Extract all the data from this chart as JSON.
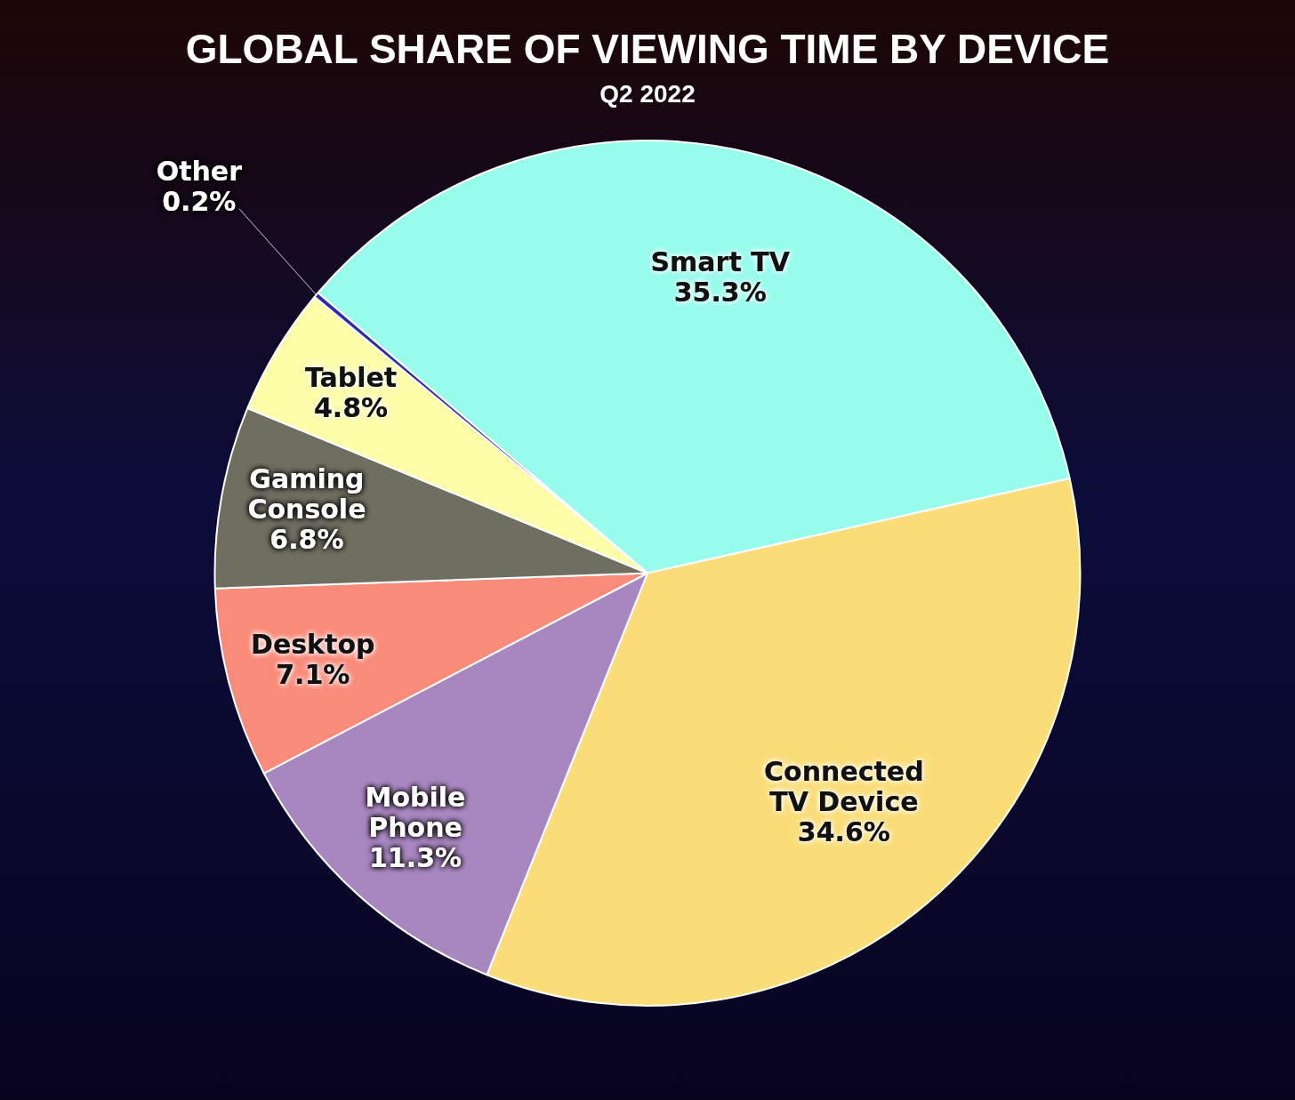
{
  "chart_data": {
    "type": "pie",
    "title": "GLOBAL SHARE OF VIEWING TIME BY DEVICE",
    "subtitle": "Q2 2022",
    "categories": [
      "Smart TV",
      "Connected TV Device",
      "Mobile Phone",
      "Desktop",
      "Gaming Console",
      "Tablet",
      "Other"
    ],
    "values": [
      35.3,
      34.6,
      11.3,
      7.1,
      6.8,
      4.8,
      0.2
    ],
    "value_labels": [
      "35.3%",
      "34.6%",
      "11.3%",
      "7.1%",
      "6.8%",
      "4.8%",
      "0.2%"
    ],
    "colors": [
      "#98fced",
      "#fadd78",
      "#a886bf",
      "#f98b7a",
      "#6f6e60",
      "#fdfca8",
      "#2b2bb0"
    ],
    "legend": false
  }
}
